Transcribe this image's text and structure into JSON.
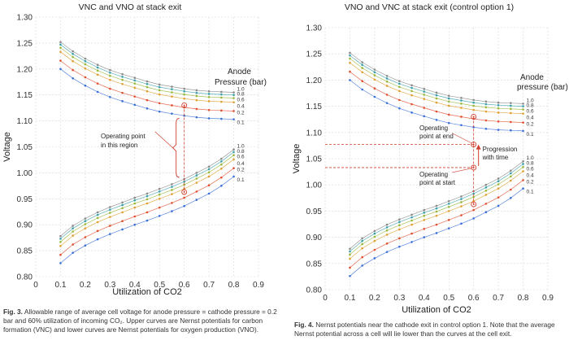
{
  "chart_data": [
    {
      "type": "line",
      "title": "VNC and VNO at stack exit",
      "xlabel": "Utilization of CO2",
      "ylabel": "Voltage",
      "xlim": [
        0,
        0.9
      ],
      "ylim": [
        0.8,
        1.3
      ],
      "xticks": [
        "0",
        "0.1",
        "0.2",
        "0.3",
        "0.4",
        "0.5",
        "0.6",
        "0.7",
        "0.8",
        "0.9"
      ],
      "yticks": [
        "0.80",
        "0.85",
        "0.90",
        "0.95",
        "1.00",
        "1.05",
        "1.10",
        "1.15",
        "1.20",
        "1.25",
        "1.30"
      ],
      "legend_title_1": "Anode",
      "legend_title_2": "Pressure (bar)",
      "x": [
        0.1,
        0.15,
        0.2,
        0.25,
        0.3,
        0.35,
        0.4,
        0.45,
        0.5,
        0.55,
        0.6,
        0.65,
        0.7,
        0.75,
        0.8
      ],
      "series": [
        {
          "name": "1.0",
          "group": "VNC",
          "color": "#8a8a8a",
          "values": [
            1.252,
            1.234,
            1.22,
            1.208,
            1.198,
            1.19,
            1.183,
            1.176,
            1.17,
            1.166,
            1.162,
            1.159,
            1.157,
            1.156,
            1.155
          ]
        },
        {
          "name": "0.8",
          "group": "VNC",
          "color": "#3aa0a8",
          "values": [
            1.247,
            1.229,
            1.215,
            1.203,
            1.193,
            1.185,
            1.178,
            1.171,
            1.165,
            1.161,
            1.157,
            1.154,
            1.152,
            1.151,
            1.15
          ]
        },
        {
          "name": "0.6",
          "group": "VNC",
          "color": "#9ab83a",
          "values": [
            1.241,
            1.223,
            1.209,
            1.197,
            1.187,
            1.179,
            1.172,
            1.165,
            1.159,
            1.155,
            1.151,
            1.148,
            1.146,
            1.145,
            1.144
          ]
        },
        {
          "name": "0.4",
          "group": "VNC",
          "color": "#e0a030",
          "values": [
            1.233,
            1.215,
            1.201,
            1.189,
            1.179,
            1.171,
            1.164,
            1.157,
            1.151,
            1.147,
            1.143,
            1.14,
            1.138,
            1.137,
            1.136
          ]
        },
        {
          "name": "0.2",
          "group": "VNC",
          "color": "#e05030",
          "values": [
            1.216,
            1.198,
            1.184,
            1.172,
            1.162,
            1.154,
            1.147,
            1.14,
            1.134,
            1.13,
            1.126,
            1.123,
            1.121,
            1.12,
            1.119
          ]
        },
        {
          "name": "0.1",
          "group": "VNC",
          "color": "#3a6fd8",
          "values": [
            1.2,
            1.182,
            1.168,
            1.156,
            1.146,
            1.138,
            1.131,
            1.124,
            1.118,
            1.114,
            1.11,
            1.107,
            1.105,
            1.104,
            1.103
          ]
        },
        {
          "name": "1.0",
          "group": "VNO",
          "color": "#8a8a8a",
          "values": [
            0.878,
            0.898,
            0.912,
            0.924,
            0.934,
            0.943,
            0.952,
            0.96,
            0.969,
            0.978,
            0.988,
            1.0,
            1.012,
            1.027,
            1.045
          ]
        },
        {
          "name": "0.8",
          "group": "VNO",
          "color": "#3aa0a8",
          "values": [
            0.873,
            0.893,
            0.907,
            0.919,
            0.929,
            0.938,
            0.947,
            0.955,
            0.964,
            0.973,
            0.983,
            0.995,
            1.007,
            1.022,
            1.04
          ]
        },
        {
          "name": "0.6",
          "group": "VNO",
          "color": "#9ab83a",
          "values": [
            0.867,
            0.887,
            0.901,
            0.913,
            0.923,
            0.932,
            0.941,
            0.949,
            0.958,
            0.967,
            0.977,
            0.989,
            1.001,
            1.016,
            1.034
          ]
        },
        {
          "name": "0.4",
          "group": "VNO",
          "color": "#e0a030",
          "values": [
            0.859,
            0.879,
            0.893,
            0.905,
            0.915,
            0.924,
            0.933,
            0.941,
            0.95,
            0.959,
            0.969,
            0.981,
            0.993,
            1.008,
            1.026
          ]
        },
        {
          "name": "0.2",
          "group": "VNO",
          "color": "#e05030",
          "values": [
            0.842,
            0.862,
            0.876,
            0.888,
            0.898,
            0.907,
            0.916,
            0.924,
            0.933,
            0.942,
            0.952,
            0.964,
            0.976,
            0.991,
            1.009
          ]
        },
        {
          "name": "0.1",
          "group": "VNO",
          "color": "#3a6fd8",
          "values": [
            0.826,
            0.846,
            0.86,
            0.872,
            0.882,
            0.891,
            0.9,
            0.908,
            0.917,
            0.926,
            0.936,
            0.948,
            0.96,
            0.975,
            0.993
          ]
        }
      ],
      "annotations": [
        {
          "text_lines": [
            "Operating point",
            "in this region"
          ],
          "range_x": 0.6,
          "range_y": [
            0.963,
            1.13
          ]
        }
      ]
    },
    {
      "type": "line",
      "title": "VNO and VNC at stack exit (control option 1)",
      "xlabel": "Utilization of CO2",
      "ylabel": "Voltage",
      "xlim": [
        0,
        0.9
      ],
      "ylim": [
        0.8,
        1.3
      ],
      "xticks": [
        "0",
        "0.1",
        "0.2",
        "0.3",
        "0.4",
        "0.5",
        "0.6",
        "0.7",
        "0.8",
        "0.9"
      ],
      "yticks": [
        "0.80",
        "0.85",
        "0.90",
        "0.95",
        "1.00",
        "1.05",
        "1.10",
        "1.15",
        "1.20",
        "1.25",
        "1.30"
      ],
      "legend_title_1": "Anode",
      "legend_title_2": "pressure (bar)",
      "x": [
        0.1,
        0.15,
        0.2,
        0.25,
        0.3,
        0.35,
        0.4,
        0.45,
        0.5,
        0.55,
        0.6,
        0.65,
        0.7,
        0.75,
        0.8
      ],
      "series": [
        {
          "name": "1.0",
          "group": "VNC",
          "color": "#8a8a8a",
          "values": [
            1.252,
            1.234,
            1.22,
            1.208,
            1.198,
            1.19,
            1.183,
            1.176,
            1.17,
            1.166,
            1.162,
            1.159,
            1.157,
            1.156,
            1.155
          ]
        },
        {
          "name": "0.8",
          "group": "VNC",
          "color": "#3aa0a8",
          "values": [
            1.247,
            1.229,
            1.215,
            1.203,
            1.193,
            1.185,
            1.178,
            1.171,
            1.165,
            1.161,
            1.157,
            1.154,
            1.152,
            1.151,
            1.15
          ]
        },
        {
          "name": "0.6",
          "group": "VNC",
          "color": "#9ab83a",
          "values": [
            1.241,
            1.223,
            1.209,
            1.197,
            1.187,
            1.179,
            1.172,
            1.165,
            1.159,
            1.155,
            1.151,
            1.148,
            1.146,
            1.145,
            1.144
          ]
        },
        {
          "name": "0.4",
          "group": "VNC",
          "color": "#e0a030",
          "values": [
            1.233,
            1.215,
            1.201,
            1.189,
            1.179,
            1.171,
            1.164,
            1.157,
            1.151,
            1.147,
            1.143,
            1.14,
            1.138,
            1.137,
            1.136
          ]
        },
        {
          "name": "0.2",
          "group": "VNC",
          "color": "#e05030",
          "values": [
            1.216,
            1.198,
            1.184,
            1.172,
            1.162,
            1.154,
            1.147,
            1.14,
            1.134,
            1.13,
            1.126,
            1.123,
            1.121,
            1.12,
            1.119
          ]
        },
        {
          "name": "0.1",
          "group": "VNC",
          "color": "#3a6fd8",
          "values": [
            1.2,
            1.182,
            1.168,
            1.156,
            1.146,
            1.138,
            1.131,
            1.124,
            1.118,
            1.114,
            1.11,
            1.107,
            1.105,
            1.104,
            1.103
          ]
        },
        {
          "name": "1.0",
          "group": "VNO",
          "color": "#8a8a8a",
          "values": [
            0.878,
            0.898,
            0.912,
            0.924,
            0.934,
            0.943,
            0.952,
            0.96,
            0.969,
            0.978,
            0.988,
            1.0,
            1.012,
            1.027,
            1.045
          ]
        },
        {
          "name": "0.8",
          "group": "VNO",
          "color": "#3aa0a8",
          "values": [
            0.873,
            0.893,
            0.907,
            0.919,
            0.929,
            0.938,
            0.947,
            0.955,
            0.964,
            0.973,
            0.983,
            0.995,
            1.007,
            1.022,
            1.04
          ]
        },
        {
          "name": "0.6",
          "group": "VNO",
          "color": "#9ab83a",
          "values": [
            0.867,
            0.887,
            0.901,
            0.913,
            0.923,
            0.932,
            0.941,
            0.949,
            0.958,
            0.967,
            0.977,
            0.989,
            1.001,
            1.016,
            1.034
          ]
        },
        {
          "name": "0.4",
          "group": "VNO",
          "color": "#e0a030",
          "values": [
            0.859,
            0.879,
            0.893,
            0.905,
            0.915,
            0.924,
            0.933,
            0.941,
            0.95,
            0.959,
            0.969,
            0.981,
            0.993,
            1.008,
            1.026
          ]
        },
        {
          "name": "0.2",
          "group": "VNO",
          "color": "#e05030",
          "values": [
            0.842,
            0.862,
            0.876,
            0.888,
            0.898,
            0.907,
            0.916,
            0.924,
            0.933,
            0.942,
            0.952,
            0.964,
            0.976,
            0.991,
            1.009
          ]
        },
        {
          "name": "0.1",
          "group": "VNO",
          "color": "#3a6fd8",
          "values": [
            0.826,
            0.846,
            0.86,
            0.872,
            0.882,
            0.891,
            0.9,
            0.908,
            0.917,
            0.926,
            0.936,
            0.948,
            0.96,
            0.975,
            0.993
          ]
        }
      ],
      "annotations": [
        {
          "text_lines": [
            "Operating",
            "point at end"
          ],
          "x": 0.6,
          "y": 1.077
        },
        {
          "text_lines": [
            "Operating",
            "point at start"
          ],
          "x": 0.6,
          "y": 1.033
        },
        {
          "text_lines": [
            "Progression",
            "with time"
          ]
        }
      ]
    }
  ],
  "captions": {
    "left": {
      "label": "Fig. 3.",
      "text": "Allowable range of average cell voltage for anode pressure = cathode pressure = 0.2 bar and 60% utilization of incoming CO₂. Upper curves are Nernst potentials for carbon formation (VNC) and lower curves are Nernst potentials for oxygen production (VNO)."
    },
    "right": {
      "label": "Fig. 4.",
      "text": "Nernst potentials near the cathode exit in control option 1. Note that the average Nernst potential across a cell will lie lower than the curves at the cell exit."
    }
  }
}
